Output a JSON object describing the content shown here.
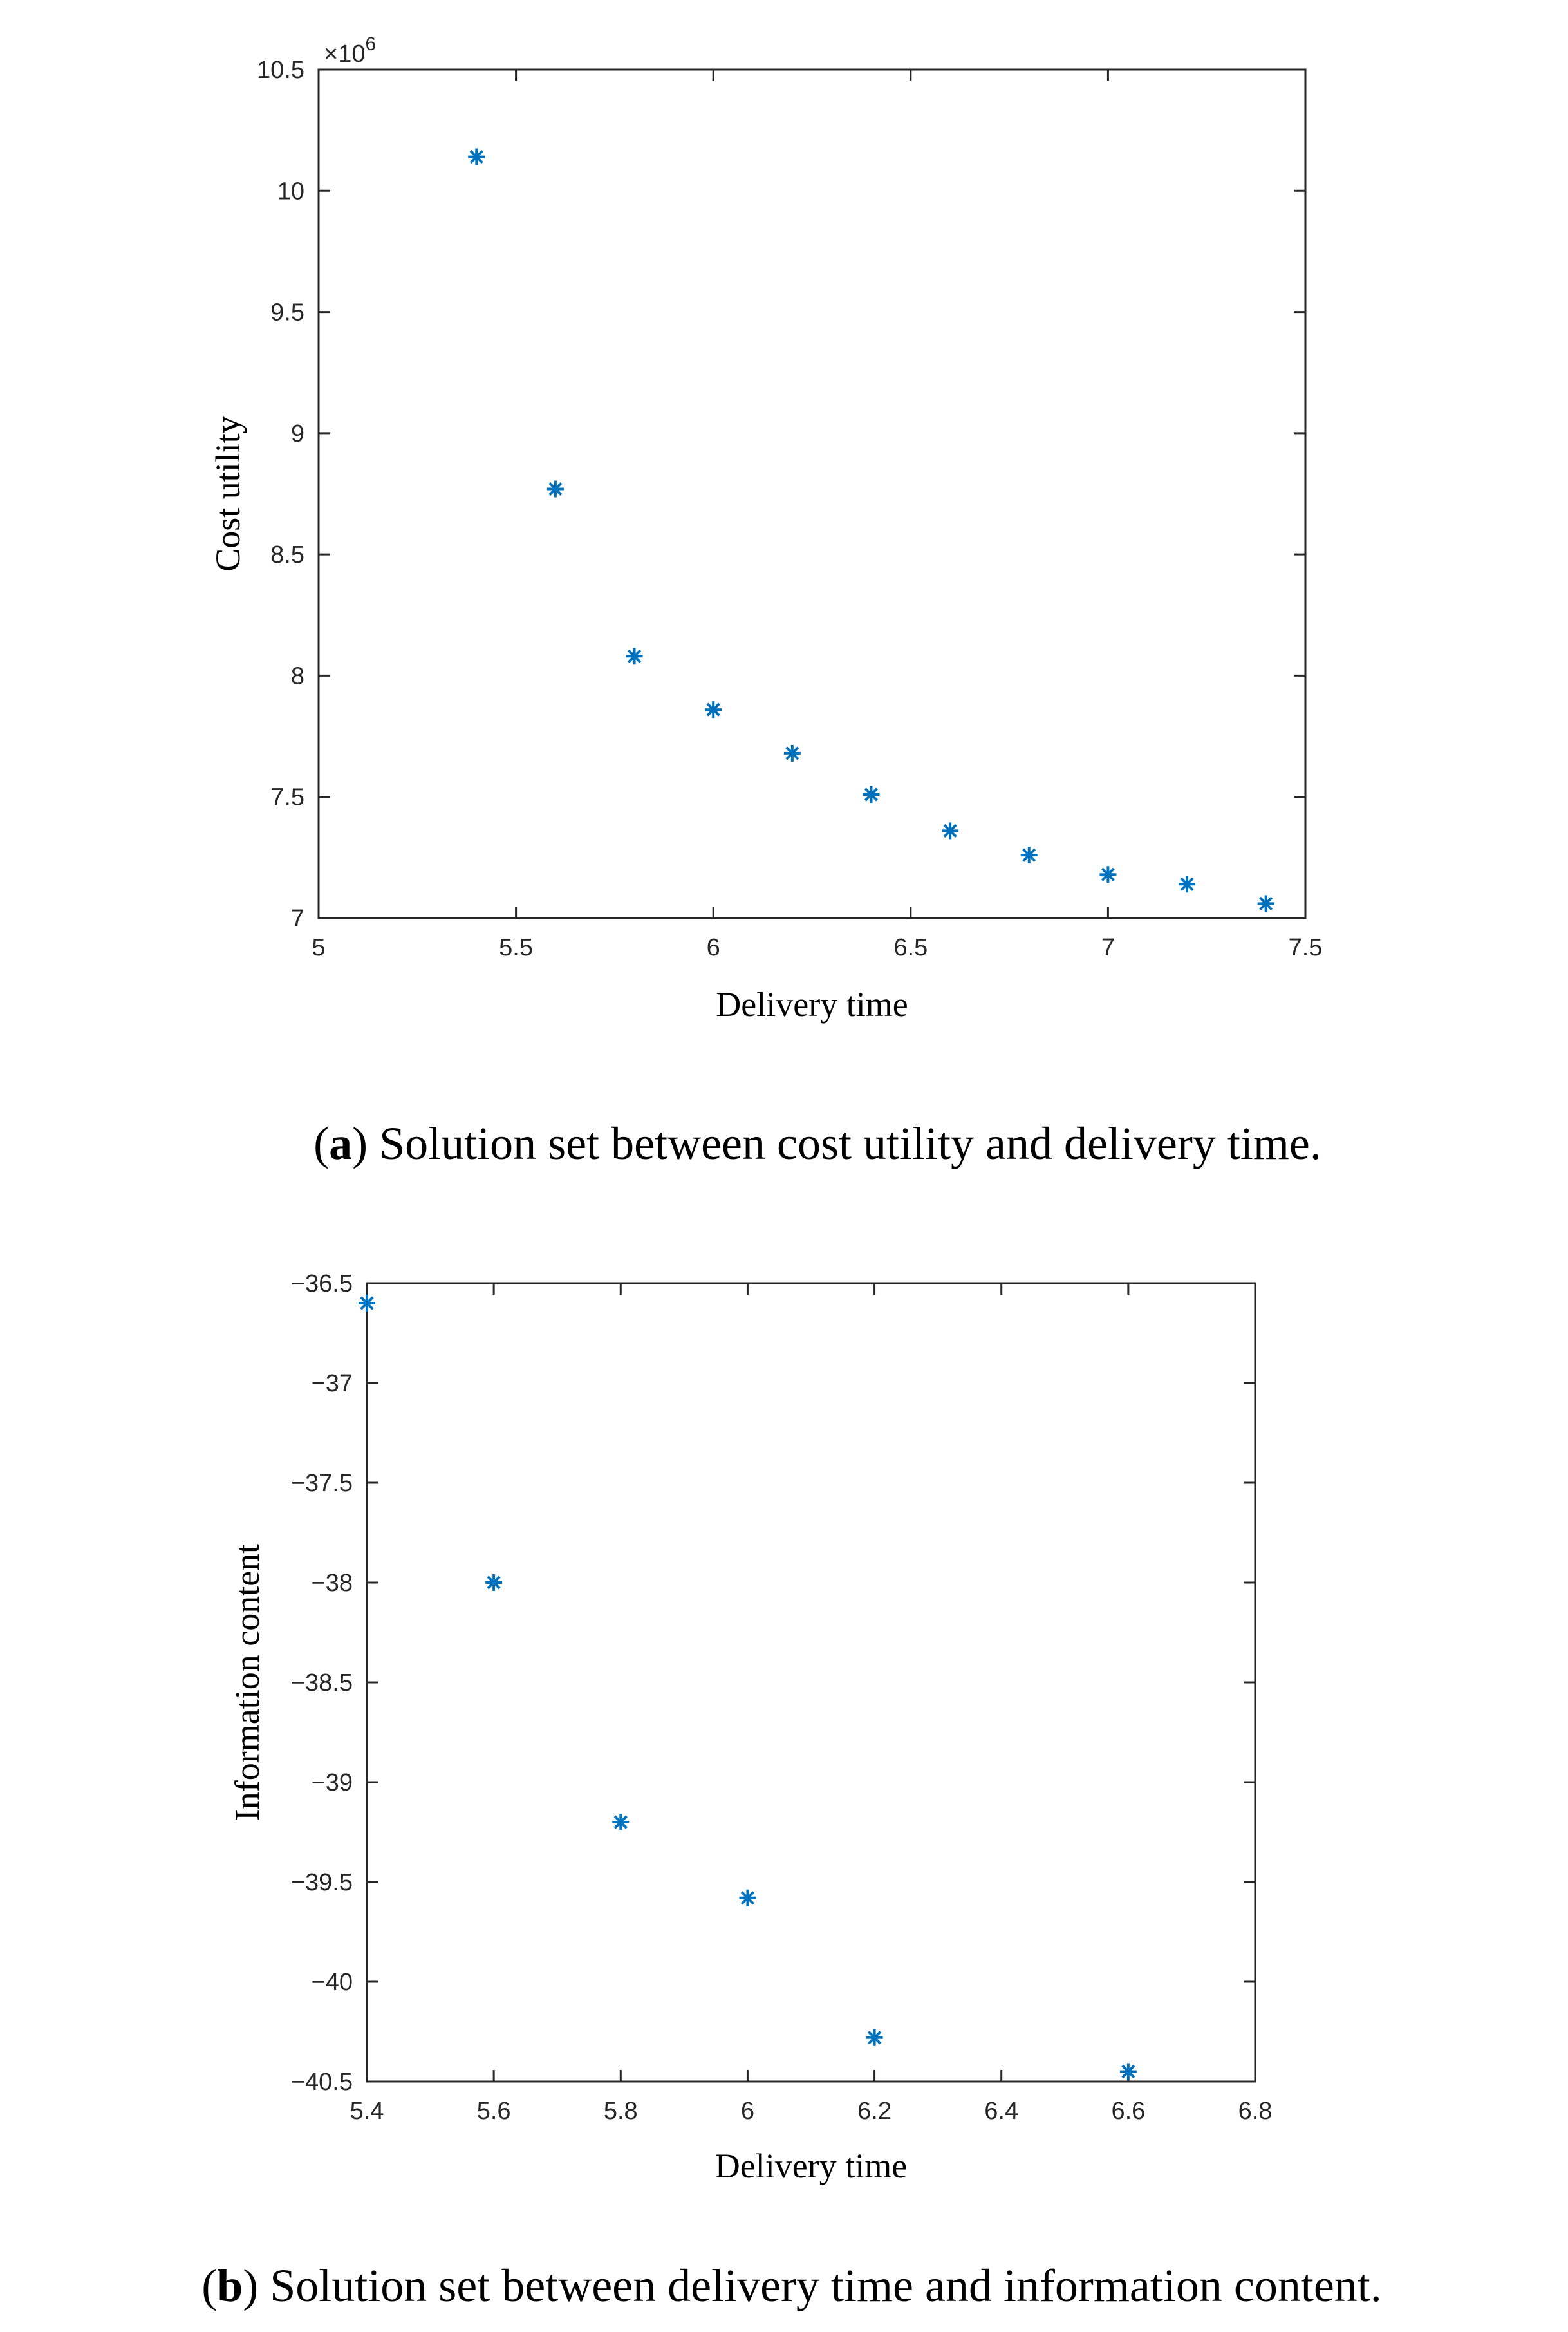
{
  "figure": {
    "caption_a": {
      "open": "(",
      "letter": "a",
      "text": ") Solution set between cost utility and delivery time."
    },
    "caption_b": {
      "open": "(",
      "letter": "b",
      "text": ") Solution set between delivery time and information content."
    }
  },
  "chart_data": [
    {
      "type": "scatter",
      "title": "",
      "xlabel": "Delivery time",
      "ylabel": "Cost utility",
      "xlim": [
        5,
        7.5
      ],
      "ylim": [
        7,
        10.5
      ],
      "y_exponent": "×10",
      "y_exponent_power": "6",
      "xticks": [
        5,
        5.5,
        6,
        6.5,
        7,
        7.5
      ],
      "xtick_labels": [
        "5",
        "5.5",
        "6",
        "6.5",
        "7",
        "7.5"
      ],
      "yticks": [
        7,
        7.5,
        8,
        8.5,
        9,
        9.5,
        10,
        10.5
      ],
      "ytick_labels": [
        "7",
        "7.5",
        "8",
        "8.5",
        "9",
        "9.5",
        "10",
        "10.5"
      ],
      "marker": "*",
      "color": "#0072BD",
      "series": [
        {
          "name": "Solution set",
          "x": [
            5.4,
            5.6,
            5.8,
            6.0,
            6.2,
            6.4,
            6.6,
            6.8,
            7.0,
            7.2,
            7.4
          ],
          "y": [
            10.14,
            8.77,
            8.08,
            7.86,
            7.68,
            7.51,
            7.36,
            7.26,
            7.18,
            7.14,
            7.06
          ]
        }
      ]
    },
    {
      "type": "scatter",
      "title": "",
      "xlabel": "Delivery time",
      "ylabel": "Information content",
      "xlim": [
        5.4,
        6.8
      ],
      "ylim": [
        -40.5,
        -36.5
      ],
      "xticks": [
        5.4,
        5.6,
        5.8,
        6.0,
        6.2,
        6.4,
        6.6,
        6.8
      ],
      "xtick_labels": [
        "5.4",
        "5.6",
        "5.8",
        "6",
        "6.2",
        "6.4",
        "6.6",
        "6.8"
      ],
      "yticks": [
        -36.5,
        -37,
        -37.5,
        -38,
        -38.5,
        -39,
        -39.5,
        -40,
        -40.5
      ],
      "ytick_labels": [
        "−36.5",
        "−37",
        "−37.5",
        "−38",
        "−38.5",
        "−39",
        "−39.5",
        "−40",
        "−40.5"
      ],
      "marker": "*",
      "color": "#0072BD",
      "series": [
        {
          "name": "Solution set",
          "x": [
            5.4,
            5.6,
            5.8,
            6.0,
            6.2,
            6.6
          ],
          "y": [
            -36.6,
            -38.0,
            -39.2,
            -39.58,
            -40.28,
            -40.45
          ]
        }
      ]
    }
  ]
}
